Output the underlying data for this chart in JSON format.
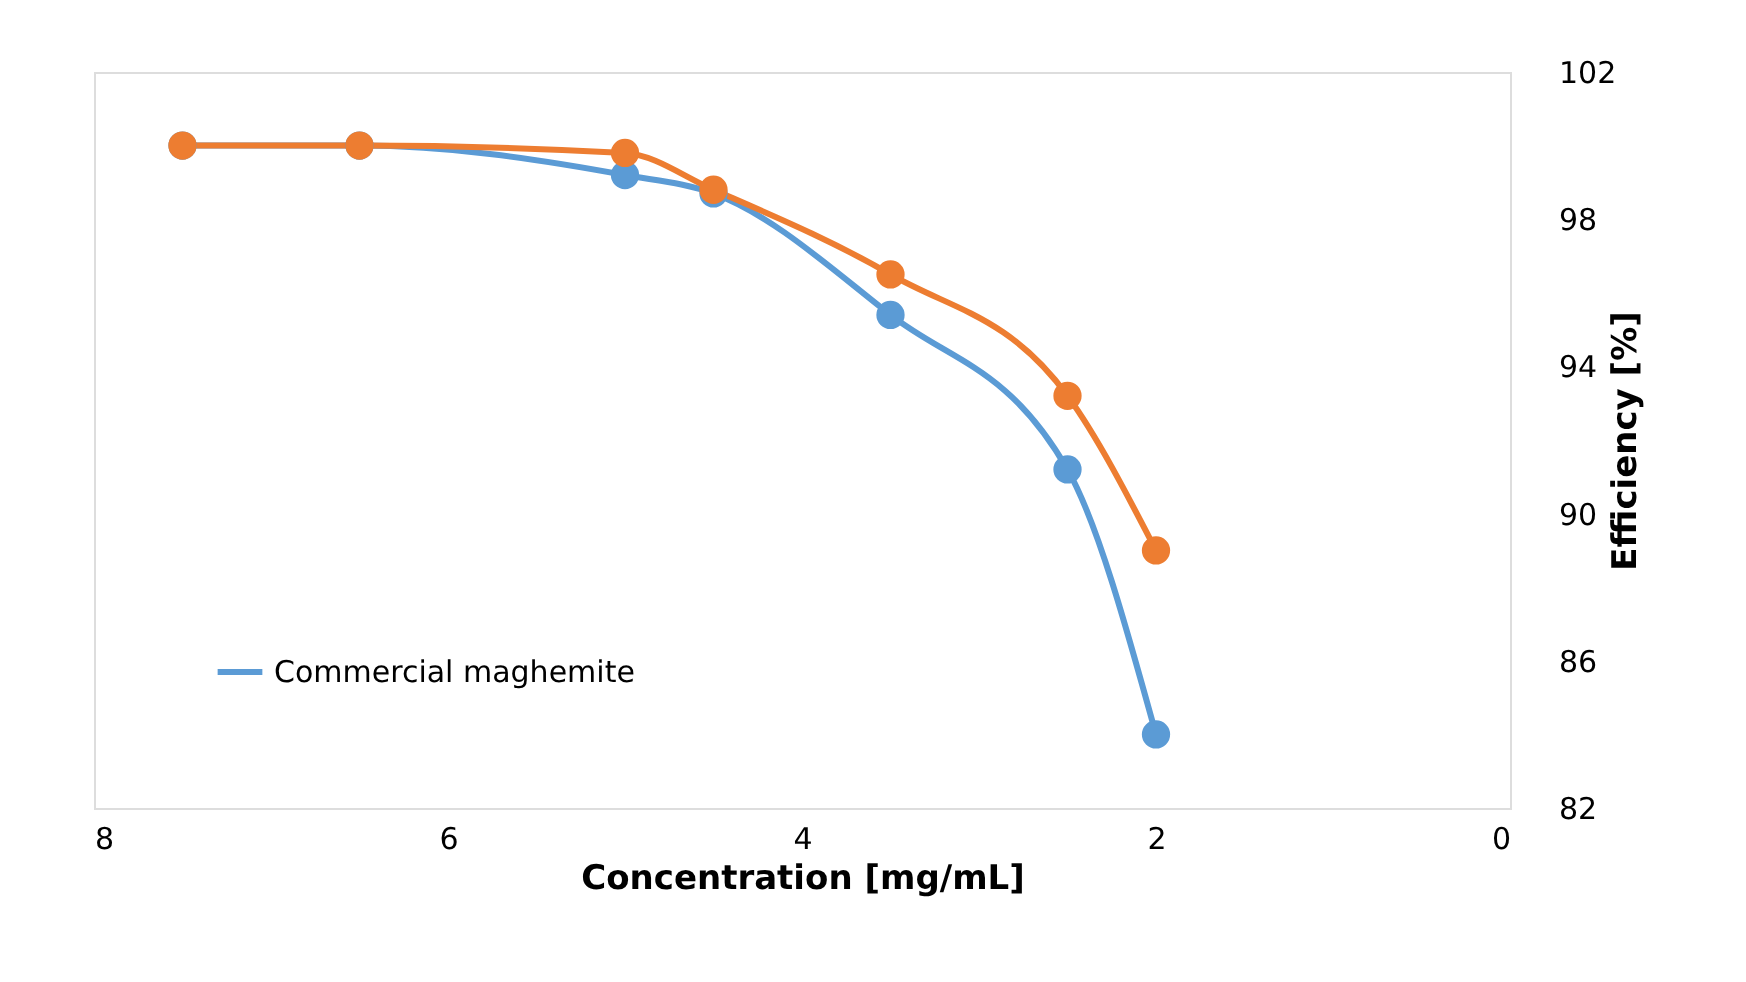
{
  "chart_data": {
    "type": "line",
    "xlabel": "Concentration [mg/mL]",
    "ylabel": "Efficiency [%]",
    "x": [
      7.5,
      6.5,
      5,
      4.5,
      3.5,
      2.5,
      2
    ],
    "xlim": [
      8,
      0
    ],
    "xticks": [
      8,
      6,
      4,
      2,
      0
    ],
    "ylim": [
      82,
      102
    ],
    "yticks": [
      82,
      86,
      90,
      94,
      98,
      102
    ],
    "grid": false,
    "legend": "bottom left",
    "marker": "circle",
    "line_style": "solid",
    "series": [
      {
        "name": "Commercial maghemite",
        "color": "#5b9bd5",
        "values": [
          100,
          100,
          99.2,
          98.7,
          95.4,
          91.2,
          84.0
        ]
      },
      {
        "color": "#ed7d31",
        "values": [
          100,
          100,
          99.8,
          98.8,
          96.5,
          93.2,
          89.0
        ]
      }
    ]
  }
}
